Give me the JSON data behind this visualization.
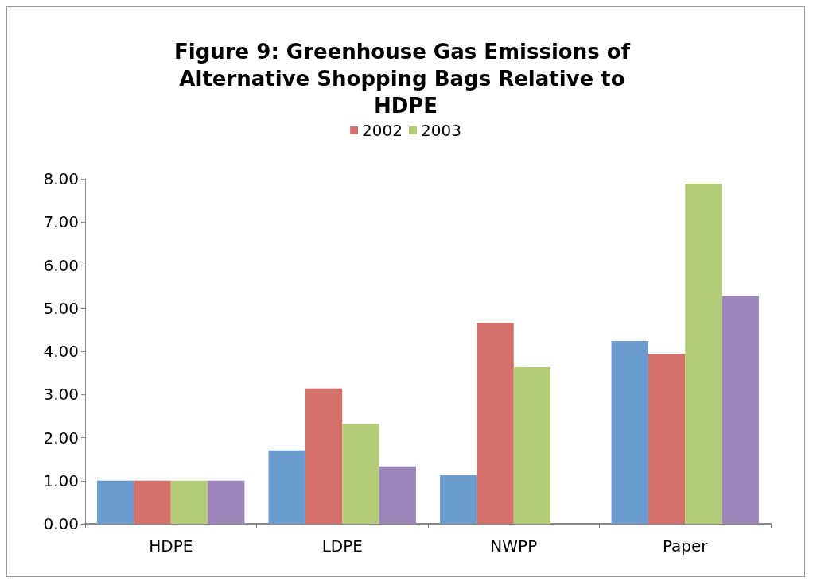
{
  "chart_data": {
    "type": "bar",
    "title": "Figure 9: Greenhouse Gas Emissions of Alternative Shopping Bags Relative to HDPE",
    "categories": [
      "HDPE",
      "LDPE",
      "NWPP",
      "Paper"
    ],
    "series": [
      {
        "color": "#6a9ccf",
        "values": [
          1.0,
          1.7,
          1.13,
          4.24
        ]
      },
      {
        "name": "2002",
        "color": "#d4706a",
        "values": [
          1.0,
          3.14,
          4.66,
          3.94
        ]
      },
      {
        "name": "2003",
        "color": "#b4cb77",
        "values": [
          1.0,
          2.32,
          3.63,
          7.89
        ]
      },
      {
        "color": "#9c85bb",
        "values": [
          1.0,
          1.33,
          null,
          5.28
        ]
      }
    ],
    "ylim": [
      0,
      8
    ],
    "yticks": [
      {
        "value": 0,
        "label": "0.00"
      },
      {
        "value": 1,
        "label": "1.00"
      },
      {
        "value": 2,
        "label": "2.00"
      },
      {
        "value": 3,
        "label": "3.00"
      },
      {
        "value": 4,
        "label": "4.00"
      },
      {
        "value": 5,
        "label": "5.00"
      },
      {
        "value": 6,
        "label": "6.00"
      },
      {
        "value": 7,
        "label": "7.00"
      },
      {
        "value": 8,
        "label": "8.00"
      }
    ],
    "grid": false,
    "legend": "top"
  }
}
